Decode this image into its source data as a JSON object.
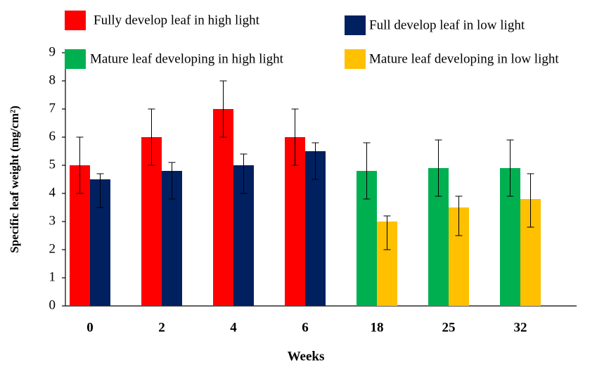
{
  "chart_data": {
    "type": "bar",
    "xlabel": "Weeks",
    "ylabel": "Specific leaf weight (mg/cm²)",
    "categories": [
      "0",
      "2",
      "4",
      "6",
      "18",
      "25",
      "32"
    ],
    "series": [
      {
        "name": "Fully develop leaf in high light",
        "color": "#ff0000",
        "values": [
          5,
          6,
          7,
          6,
          null,
          null,
          null
        ],
        "error_minus": [
          1,
          1,
          1,
          1,
          null,
          null,
          null
        ],
        "error_plus": [
          1,
          1,
          1,
          1,
          null,
          null,
          null
        ]
      },
      {
        "name": "Full develop leaf in low light",
        "color": "#002060",
        "values": [
          4.5,
          4.8,
          5,
          5.5,
          null,
          null,
          null
        ],
        "error_minus": [
          1,
          1,
          1,
          1,
          null,
          null,
          null
        ],
        "error_plus": [
          0.2,
          0.3,
          0.4,
          0.3,
          null,
          null,
          null
        ]
      },
      {
        "name": "Mature leaf developing in high light",
        "color": "#00b050",
        "values": [
          null,
          null,
          null,
          null,
          4.8,
          4.9,
          4.9
        ],
        "error_minus": [
          null,
          null,
          null,
          null,
          1,
          1,
          1
        ],
        "error_plus": [
          null,
          null,
          null,
          null,
          1,
          1,
          1
        ]
      },
      {
        "name": "Mature leaf developing in low light",
        "color": "#ffc000",
        "values": [
          null,
          null,
          null,
          null,
          3,
          3.5,
          3.8
        ],
        "error_minus": [
          null,
          null,
          null,
          null,
          1,
          1,
          1
        ],
        "error_plus": [
          null,
          null,
          null,
          null,
          0.2,
          0.4,
          0.9
        ]
      }
    ],
    "ylim": [
      0,
      9
    ],
    "yticks": [
      0,
      1,
      2,
      3,
      4,
      5,
      6,
      7,
      8,
      9
    ],
    "grid": false
  }
}
